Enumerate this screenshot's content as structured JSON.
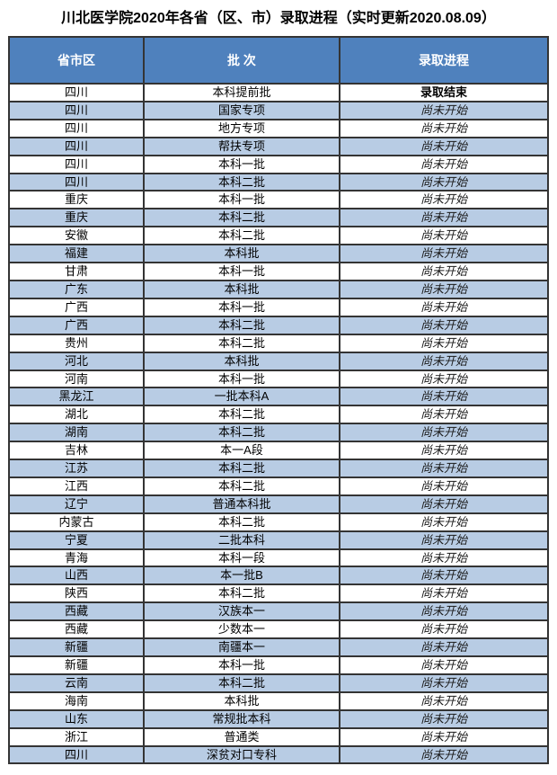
{
  "title": "川北医学院2020年各省（区、市）录取进程（实时更新2020.08.09）",
  "colors": {
    "header_bg": "#4f81bd",
    "row_alt_bg": "#b8cce4",
    "border": "#343434",
    "header_text": "#ffffff",
    "body_text": "#000000"
  },
  "table": {
    "headers": [
      "省市区",
      "批 次",
      "录取进程"
    ],
    "rows": [
      {
        "province": "四川",
        "batch": "本科提前批",
        "status": "录取结束",
        "state": "done"
      },
      {
        "province": "四川",
        "batch": "国家专项",
        "status": "尚未开始",
        "state": "pending"
      },
      {
        "province": "四川",
        "batch": "地方专项",
        "status": "尚未开始",
        "state": "pending"
      },
      {
        "province": "四川",
        "batch": "帮扶专项",
        "status": "尚未开始",
        "state": "pending"
      },
      {
        "province": "四川",
        "batch": "本科一批",
        "status": "尚未开始",
        "state": "pending"
      },
      {
        "province": "四川",
        "batch": "本科二批",
        "status": "尚未开始",
        "state": "pending"
      },
      {
        "province": "重庆",
        "batch": "本科一批",
        "status": "尚未开始",
        "state": "pending"
      },
      {
        "province": "重庆",
        "batch": "本科二批",
        "status": "尚未开始",
        "state": "pending"
      },
      {
        "province": "安徽",
        "batch": "本科二批",
        "status": "尚未开始",
        "state": "pending"
      },
      {
        "province": "福建",
        "batch": "本科批",
        "status": "尚未开始",
        "state": "pending"
      },
      {
        "province": "甘肃",
        "batch": "本科一批",
        "status": "尚未开始",
        "state": "pending"
      },
      {
        "province": "广东",
        "batch": "本科批",
        "status": "尚未开始",
        "state": "pending"
      },
      {
        "province": "广西",
        "batch": "本科一批",
        "status": "尚未开始",
        "state": "pending"
      },
      {
        "province": "广西",
        "batch": "本科二批",
        "status": "尚未开始",
        "state": "pending"
      },
      {
        "province": "贵州",
        "batch": "本科二批",
        "status": "尚未开始",
        "state": "pending"
      },
      {
        "province": "河北",
        "batch": "本科批",
        "status": "尚未开始",
        "state": "pending"
      },
      {
        "province": "河南",
        "batch": "本科一批",
        "status": "尚未开始",
        "state": "pending"
      },
      {
        "province": "黑龙江",
        "batch": "一批本科A",
        "status": "尚未开始",
        "state": "pending"
      },
      {
        "province": "湖北",
        "batch": "本科二批",
        "status": "尚未开始",
        "state": "pending"
      },
      {
        "province": "湖南",
        "batch": "本科二批",
        "status": "尚未开始",
        "state": "pending"
      },
      {
        "province": "吉林",
        "batch": "本一A段",
        "status": "尚未开始",
        "state": "pending"
      },
      {
        "province": "江苏",
        "batch": "本科二批",
        "status": "尚未开始",
        "state": "pending"
      },
      {
        "province": "江西",
        "batch": "本科二批",
        "status": "尚未开始",
        "state": "pending"
      },
      {
        "province": "辽宁",
        "batch": "普通本科批",
        "status": "尚未开始",
        "state": "pending"
      },
      {
        "province": "内蒙古",
        "batch": "本科二批",
        "status": "尚未开始",
        "state": "pending"
      },
      {
        "province": "宁夏",
        "batch": "二批本科",
        "status": "尚未开始",
        "state": "pending"
      },
      {
        "province": "青海",
        "batch": "本科一段",
        "status": "尚未开始",
        "state": "pending"
      },
      {
        "province": "山西",
        "batch": "本一批B",
        "status": "尚未开始",
        "state": "pending"
      },
      {
        "province": "陕西",
        "batch": "本科二批",
        "status": "尚未开始",
        "state": "pending"
      },
      {
        "province": "西藏",
        "batch": "汉族本一",
        "status": "尚未开始",
        "state": "pending"
      },
      {
        "province": "西藏",
        "batch": "少数本一",
        "status": "尚未开始",
        "state": "pending"
      },
      {
        "province": "新疆",
        "batch": "南疆本一",
        "status": "尚未开始",
        "state": "pending"
      },
      {
        "province": "新疆",
        "batch": "本科一批",
        "status": "尚未开始",
        "state": "pending"
      },
      {
        "province": "云南",
        "batch": "本科二批",
        "status": "尚未开始",
        "state": "pending"
      },
      {
        "province": "海南",
        "batch": "本科批",
        "status": "尚未开始",
        "state": "pending"
      },
      {
        "province": "山东",
        "batch": "常规批本科",
        "status": "尚未开始",
        "state": "pending"
      },
      {
        "province": "浙江",
        "batch": "普通类",
        "status": "尚未开始",
        "state": "pending"
      },
      {
        "province": "四川",
        "batch": "深贫对口专科",
        "status": "尚未开始",
        "state": "pending"
      }
    ]
  }
}
